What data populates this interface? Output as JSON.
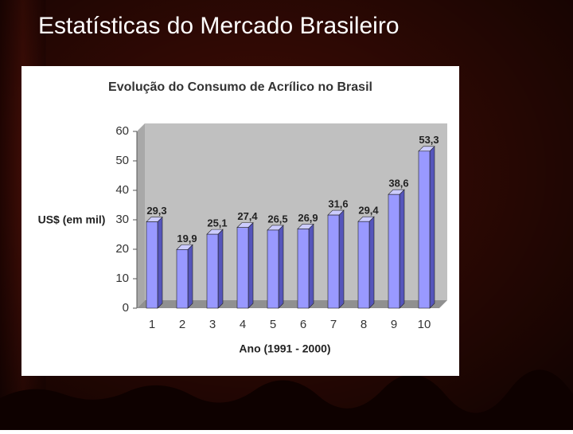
{
  "slide": {
    "title": "Estatísticas do Mercado Brasileiro"
  },
  "chart_data": {
    "type": "bar3d",
    "title": "Evolução do Consumo de Acrílico no Brasil",
    "x_label": "Ano (1991 - 2000)",
    "y_label": "US$ (em mil)",
    "categories": [
      "1",
      "2",
      "3",
      "4",
      "5",
      "6",
      "7",
      "8",
      "9",
      "10"
    ],
    "values": [
      29.3,
      19.9,
      25.1,
      27.4,
      26.5,
      26.9,
      31.6,
      29.4,
      38.6,
      53.3
    ],
    "value_labels": [
      "29,3",
      "19,9",
      "25,1",
      "27,4",
      "26,5",
      "26,9",
      "31,6",
      "29,4",
      "38,6",
      "53,3"
    ],
    "color": "#9999ff",
    "ylim": [
      0,
      60
    ],
    "yticks": [
      0,
      10,
      20,
      30,
      40,
      50,
      60
    ]
  }
}
